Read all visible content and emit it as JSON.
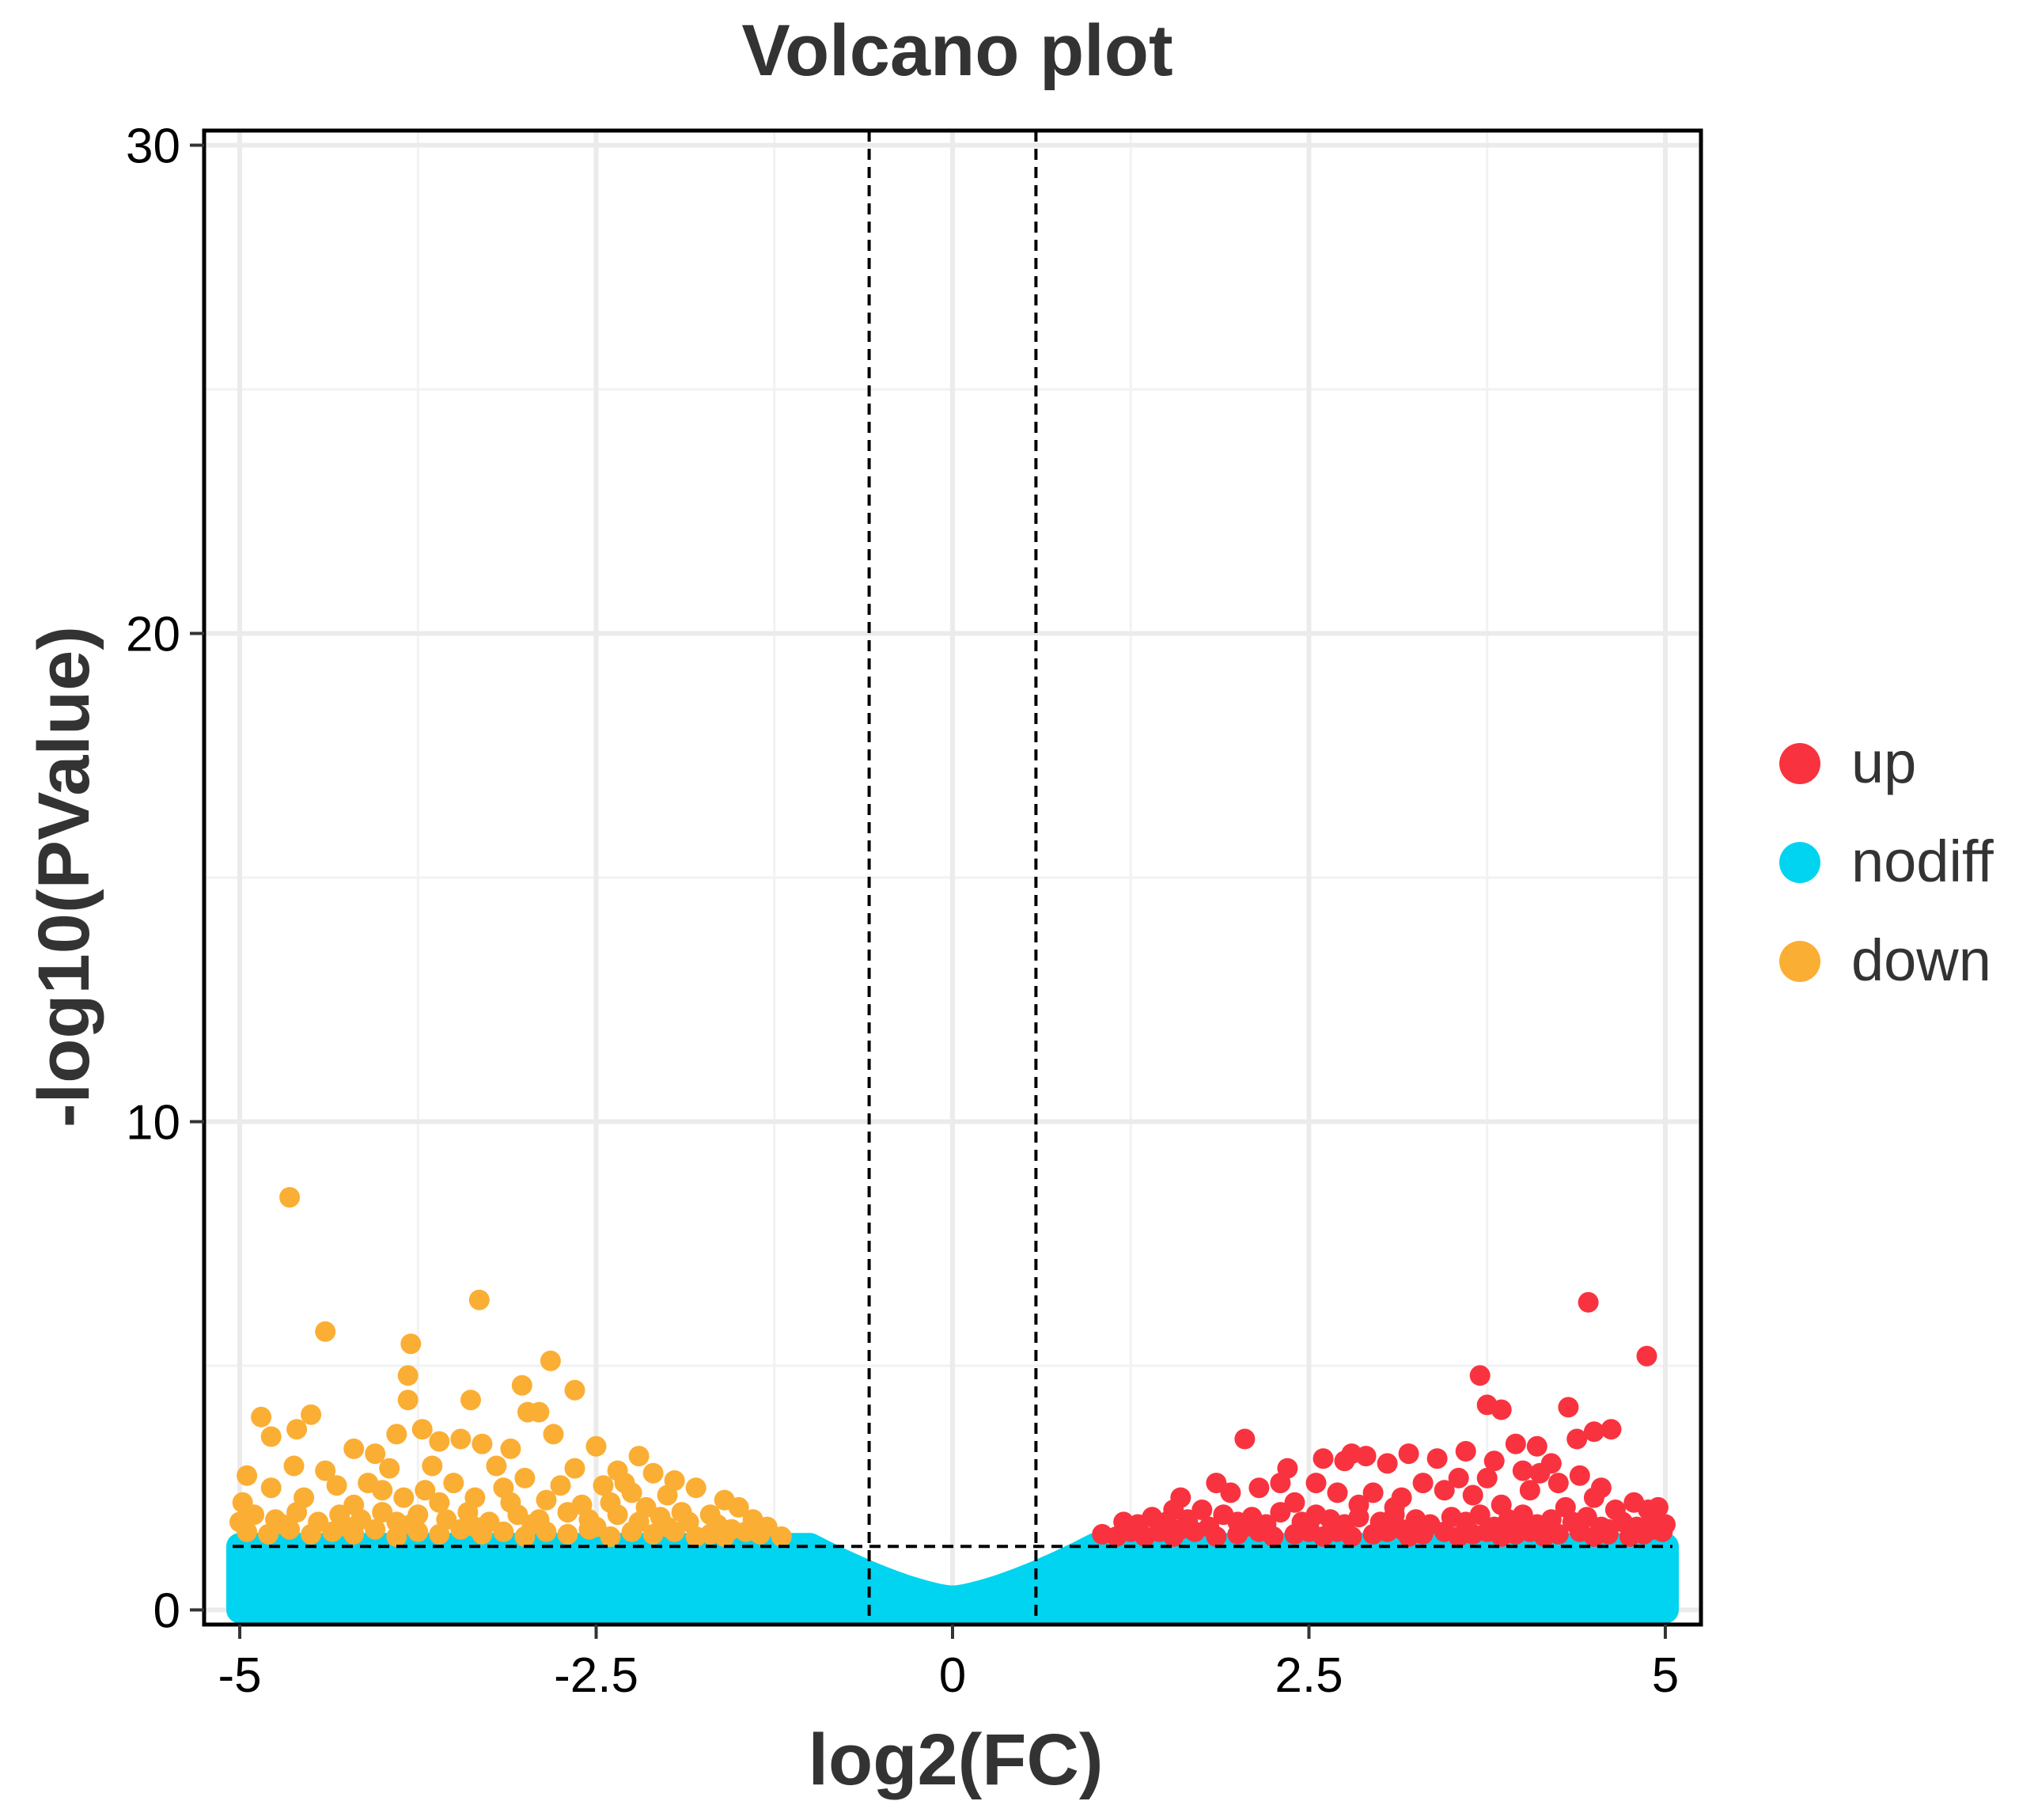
{
  "chart_data": {
    "type": "scatter",
    "title": "Volcano plot",
    "xlabel": "log2(FC)",
    "ylabel": "-log10(PValue)",
    "xlim": [
      -5.25,
      5.25
    ],
    "ylim": [
      -0.3,
      30.3
    ],
    "x_ticks": [
      -5,
      -2.5,
      0,
      2.5,
      5
    ],
    "x_tick_labels": [
      "-5",
      "-2.5",
      "0",
      "2.5",
      "5"
    ],
    "y_ticks": [
      0,
      10,
      20,
      30
    ],
    "y_tick_labels": [
      "0",
      "10",
      "20",
      "30"
    ],
    "grid": true,
    "thresholds": {
      "log2fc_low": -0.585,
      "log2fc_high": 0.585,
      "neg_log10_p": 1.301
    },
    "legend": {
      "position": "right",
      "entries": [
        {
          "name": "up",
          "color": "#F8333F"
        },
        {
          "name": "nodiff",
          "color": "#00D4F0"
        },
        {
          "name": "down",
          "color": "#FBAE34"
        }
      ]
    },
    "series": [
      {
        "name": "up",
        "color": "#F8333F",
        "points": [
          [
            4.46,
            6.3
          ],
          [
            4.87,
            5.2
          ],
          [
            3.7,
            4.8
          ],
          [
            3.75,
            4.2
          ],
          [
            3.85,
            4.1
          ],
          [
            4.32,
            4.15
          ],
          [
            4.5,
            3.65
          ],
          [
            4.62,
            3.7
          ],
          [
            4.38,
            3.5
          ],
          [
            2.05,
            3.5
          ],
          [
            3.95,
            3.4
          ],
          [
            4.1,
            3.35
          ],
          [
            3.6,
            3.25
          ],
          [
            3.2,
            3.2
          ],
          [
            2.8,
            3.2
          ],
          [
            2.9,
            3.15
          ],
          [
            3.05,
            3.0
          ],
          [
            2.6,
            3.1
          ],
          [
            2.75,
            3.05
          ],
          [
            2.35,
            2.9
          ],
          [
            4.2,
            3.0
          ],
          [
            3.4,
            3.1
          ],
          [
            3.8,
            3.05
          ],
          [
            4.0,
            2.85
          ],
          [
            4.12,
            2.8
          ],
          [
            3.55,
            2.7
          ],
          [
            1.85,
            2.6
          ],
          [
            2.3,
            2.6
          ],
          [
            2.55,
            2.6
          ],
          [
            3.3,
            2.6
          ],
          [
            3.75,
            2.7
          ],
          [
            4.25,
            2.6
          ],
          [
            4.55,
            2.5
          ],
          [
            4.4,
            2.75
          ],
          [
            1.6,
            2.3
          ],
          [
            1.95,
            2.4
          ],
          [
            2.15,
            2.5
          ],
          [
            2.7,
            2.4
          ],
          [
            2.95,
            2.4
          ],
          [
            3.15,
            2.3
          ],
          [
            3.45,
            2.45
          ],
          [
            3.65,
            2.35
          ],
          [
            4.05,
            2.45
          ],
          [
            4.5,
            2.3
          ],
          [
            4.78,
            2.2
          ],
          [
            4.95,
            2.1
          ],
          [
            1.55,
            2.05
          ],
          [
            1.75,
            2.05
          ],
          [
            2.4,
            2.2
          ],
          [
            2.85,
            2.15
          ],
          [
            3.1,
            2.1
          ],
          [
            3.85,
            2.15
          ],
          [
            4.3,
            2.1
          ],
          [
            4.65,
            2.05
          ],
          [
            4.88,
            2.05
          ],
          [
            1.2,
            1.8
          ],
          [
            1.3,
            1.75
          ],
          [
            1.4,
            1.9
          ],
          [
            1.5,
            1.8
          ],
          [
            1.65,
            1.85
          ],
          [
            1.8,
            1.7
          ],
          [
            1.9,
            1.95
          ],
          [
            2.0,
            1.8
          ],
          [
            2.1,
            1.9
          ],
          [
            2.2,
            1.75
          ],
          [
            2.3,
            2.0
          ],
          [
            2.45,
            1.8
          ],
          [
            2.55,
            1.95
          ],
          [
            2.65,
            1.85
          ],
          [
            2.75,
            1.75
          ],
          [
            2.85,
            1.9
          ],
          [
            3.0,
            1.8
          ],
          [
            3.1,
            1.95
          ],
          [
            3.25,
            1.85
          ],
          [
            3.35,
            1.75
          ],
          [
            3.5,
            1.9
          ],
          [
            3.6,
            1.8
          ],
          [
            3.7,
            1.95
          ],
          [
            3.8,
            1.7
          ],
          [
            3.9,
            1.85
          ],
          [
            4.0,
            1.95
          ],
          [
            4.1,
            1.75
          ],
          [
            4.2,
            1.85
          ],
          [
            4.35,
            1.8
          ],
          [
            4.45,
            1.9
          ],
          [
            4.55,
            1.7
          ],
          [
            4.7,
            1.8
          ],
          [
            4.8,
            1.7
          ],
          [
            4.92,
            1.65
          ],
          [
            5.0,
            1.75
          ],
          [
            1.05,
            1.55
          ],
          [
            1.15,
            1.5
          ],
          [
            1.25,
            1.6
          ],
          [
            1.35,
            1.5
          ],
          [
            1.45,
            1.6
          ],
          [
            1.55,
            1.5
          ],
          [
            1.7,
            1.6
          ],
          [
            1.85,
            1.5
          ],
          [
            2.0,
            1.55
          ],
          [
            2.15,
            1.6
          ],
          [
            2.25,
            1.5
          ],
          [
            2.4,
            1.55
          ],
          [
            2.5,
            1.6
          ],
          [
            2.6,
            1.5
          ],
          [
            2.7,
            1.6
          ],
          [
            2.8,
            1.5
          ],
          [
            2.95,
            1.55
          ],
          [
            3.05,
            1.6
          ],
          [
            3.2,
            1.5
          ],
          [
            3.3,
            1.55
          ],
          [
            3.45,
            1.6
          ],
          [
            3.55,
            1.5
          ],
          [
            3.65,
            1.55
          ],
          [
            3.75,
            1.6
          ],
          [
            3.85,
            1.5
          ],
          [
            3.95,
            1.55
          ],
          [
            4.05,
            1.6
          ],
          [
            4.15,
            1.5
          ],
          [
            4.25,
            1.55
          ],
          [
            4.4,
            1.6
          ],
          [
            4.5,
            1.5
          ],
          [
            4.6,
            1.55
          ],
          [
            4.75,
            1.5
          ],
          [
            4.85,
            1.55
          ],
          [
            4.98,
            1.6
          ],
          [
            1.6,
            1.65
          ],
          [
            2.05,
            1.7
          ],
          [
            2.5,
            1.7
          ],
          [
            3.15,
            1.65
          ],
          [
            3.95,
            1.7
          ],
          [
            4.6,
            1.65
          ],
          [
            4.9,
            1.8
          ]
        ]
      },
      {
        "name": "down",
        "color": "#FBAE34",
        "points": [
          [
            -4.65,
            8.45
          ],
          [
            -3.32,
            6.35
          ],
          [
            -4.4,
            5.7
          ],
          [
            -3.8,
            5.45
          ],
          [
            -2.82,
            5.1
          ],
          [
            -3.82,
            4.8
          ],
          [
            -2.65,
            4.5
          ],
          [
            -3.02,
            4.6
          ],
          [
            -3.38,
            4.3
          ],
          [
            -3.82,
            4.3
          ],
          [
            -4.85,
            3.95
          ],
          [
            -4.5,
            4.0
          ],
          [
            -2.98,
            4.05
          ],
          [
            -2.9,
            4.05
          ],
          [
            -3.72,
            3.7
          ],
          [
            -3.9,
            3.6
          ],
          [
            -4.6,
            3.7
          ],
          [
            -4.78,
            3.55
          ],
          [
            -3.6,
            3.45
          ],
          [
            -3.45,
            3.5
          ],
          [
            -3.3,
            3.4
          ],
          [
            -2.8,
            3.6
          ],
          [
            -2.5,
            3.35
          ],
          [
            -4.2,
            3.3
          ],
          [
            -4.05,
            3.2
          ],
          [
            -3.1,
            3.3
          ],
          [
            -2.2,
            3.15
          ],
          [
            -4.62,
            2.95
          ],
          [
            -4.95,
            2.75
          ],
          [
            -4.4,
            2.85
          ],
          [
            -3.95,
            2.9
          ],
          [
            -3.65,
            2.95
          ],
          [
            -3.2,
            2.95
          ],
          [
            -2.65,
            2.9
          ],
          [
            -2.35,
            2.85
          ],
          [
            -2.1,
            2.8
          ],
          [
            -1.95,
            2.65
          ],
          [
            -1.8,
            2.5
          ],
          [
            -4.1,
            2.6
          ],
          [
            -4.32,
            2.55
          ],
          [
            -4.78,
            2.5
          ],
          [
            -3.5,
            2.6
          ],
          [
            -3.0,
            2.7
          ],
          [
            -2.75,
            2.55
          ],
          [
            -2.45,
            2.55
          ],
          [
            -2.25,
            2.4
          ],
          [
            -2.0,
            2.35
          ],
          [
            -1.6,
            2.25
          ],
          [
            -1.5,
            2.1
          ],
          [
            -4.98,
            2.2
          ],
          [
            -4.55,
            2.3
          ],
          [
            -4.2,
            2.15
          ],
          [
            -3.85,
            2.3
          ],
          [
            -3.6,
            2.2
          ],
          [
            -3.35,
            2.3
          ],
          [
            -3.1,
            2.2
          ],
          [
            -2.85,
            2.25
          ],
          [
            -2.6,
            2.15
          ],
          [
            -2.4,
            2.2
          ],
          [
            -2.15,
            2.1
          ],
          [
            -1.9,
            2.0
          ],
          [
            -1.7,
            1.95
          ],
          [
            -1.4,
            1.85
          ],
          [
            -1.3,
            1.7
          ],
          [
            -5.0,
            1.8
          ],
          [
            -4.9,
            1.95
          ],
          [
            -4.75,
            1.85
          ],
          [
            -4.6,
            2.0
          ],
          [
            -4.45,
            1.8
          ],
          [
            -4.3,
            1.95
          ],
          [
            -4.15,
            1.85
          ],
          [
            -4.0,
            2.0
          ],
          [
            -3.9,
            1.8
          ],
          [
            -3.75,
            1.95
          ],
          [
            -3.55,
            1.85
          ],
          [
            -3.4,
            2.0
          ],
          [
            -3.25,
            1.8
          ],
          [
            -3.05,
            1.95
          ],
          [
            -2.9,
            1.85
          ],
          [
            -2.7,
            2.0
          ],
          [
            -2.55,
            1.85
          ],
          [
            -2.35,
            1.95
          ],
          [
            -2.2,
            1.8
          ],
          [
            -2.05,
            1.9
          ],
          [
            -1.85,
            1.8
          ],
          [
            -1.65,
            1.75
          ],
          [
            -1.55,
            1.65
          ],
          [
            -1.45,
            1.6
          ],
          [
            -1.35,
            1.55
          ],
          [
            -1.2,
            1.5
          ],
          [
            -4.95,
            1.6
          ],
          [
            -4.8,
            1.55
          ],
          [
            -4.65,
            1.65
          ],
          [
            -4.5,
            1.55
          ],
          [
            -4.35,
            1.6
          ],
          [
            -4.2,
            1.55
          ],
          [
            -4.05,
            1.65
          ],
          [
            -3.9,
            1.5
          ],
          [
            -3.75,
            1.6
          ],
          [
            -3.6,
            1.55
          ],
          [
            -3.45,
            1.65
          ],
          [
            -3.3,
            1.55
          ],
          [
            -3.15,
            1.6
          ],
          [
            -3.0,
            1.5
          ],
          [
            -2.85,
            1.6
          ],
          [
            -2.7,
            1.55
          ],
          [
            -2.55,
            1.65
          ],
          [
            -2.4,
            1.5
          ],
          [
            -2.25,
            1.6
          ],
          [
            -2.1,
            1.55
          ],
          [
            -1.95,
            1.6
          ],
          [
            -1.8,
            1.5
          ],
          [
            -1.7,
            1.55
          ],
          [
            -1.6,
            1.5
          ],
          [
            -4.7,
            1.75
          ],
          [
            -4.25,
            1.7
          ],
          [
            -3.8,
            1.75
          ],
          [
            -3.35,
            1.7
          ],
          [
            -2.95,
            1.75
          ],
          [
            -2.5,
            1.7
          ],
          [
            -2.0,
            1.7
          ],
          [
            -3.7,
            2.45
          ],
          [
            -3.15,
            2.5
          ],
          [
            -4.0,
            2.45
          ],
          [
            -2.3,
            2.6
          ]
        ]
      }
    ]
  }
}
